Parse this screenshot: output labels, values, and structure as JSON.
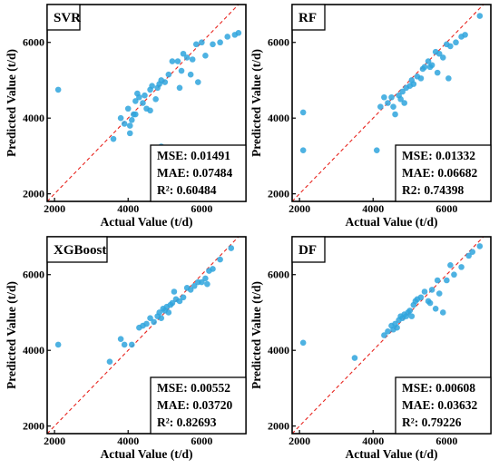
{
  "chart_data": [
    {
      "type": "scatter",
      "title": "SVR",
      "xlabel": "Actual Value (t/d)",
      "ylabel": "Predicted Value (t/d)",
      "xlim": [
        1800,
        7200
      ],
      "ylim": [
        1800,
        7000
      ],
      "xticks": [
        "2000",
        "4000",
        "6000"
      ],
      "yticks": [
        "2000",
        "4000",
        "6000"
      ],
      "metrics": [
        "MSE: 0.01491",
        "MAE: 0.07484",
        "R²: 0.60484"
      ],
      "points": [
        [
          2100,
          4750
        ],
        [
          3600,
          3450
        ],
        [
          3800,
          4000
        ],
        [
          3900,
          3850
        ],
        [
          4000,
          4250
        ],
        [
          4050,
          3800
        ],
        [
          4050,
          3600
        ],
        [
          4100,
          3950
        ],
        [
          4150,
          4100
        ],
        [
          4200,
          4450
        ],
        [
          4200,
          4100
        ],
        [
          4250,
          4650
        ],
        [
          4300,
          4550
        ],
        [
          4400,
          4400
        ],
        [
          4450,
          4600
        ],
        [
          4500,
          4250
        ],
        [
          4600,
          4200
        ],
        [
          4600,
          4750
        ],
        [
          4650,
          4850
        ],
        [
          4750,
          4500
        ],
        [
          4800,
          4800
        ],
        [
          4850,
          4900
        ],
        [
          4900,
          5000
        ],
        [
          4900,
          3250
        ],
        [
          5000,
          4950
        ],
        [
          5100,
          5150
        ],
        [
          5200,
          5500
        ],
        [
          5350,
          5500
        ],
        [
          5400,
          4800
        ],
        [
          5450,
          5250
        ],
        [
          5500,
          5700
        ],
        [
          5600,
          5600
        ],
        [
          5700,
          5150
        ],
        [
          5750,
          5550
        ],
        [
          5850,
          5950
        ],
        [
          5900,
          4950
        ],
        [
          6000,
          6000
        ],
        [
          6100,
          5650
        ],
        [
          6300,
          5950
        ],
        [
          6500,
          6000
        ],
        [
          6700,
          6150
        ],
        [
          6900,
          6200
        ],
        [
          7000,
          6250
        ]
      ]
    },
    {
      "type": "scatter",
      "title": "RF",
      "xlabel": "Actual Value (t/d)",
      "ylabel": "Predicted Value (t/d)",
      "xlim": [
        1800,
        7200
      ],
      "ylim": [
        1800,
        7000
      ],
      "xticks": [
        "2000",
        "4000",
        "6000"
      ],
      "yticks": [
        "2000",
        "4000",
        "6000"
      ],
      "metrics": [
        "MSE: 0.01332",
        "MAE: 0.06682",
        "R2: 0.74398"
      ],
      "points": [
        [
          2100,
          4150
        ],
        [
          2100,
          3150
        ],
        [
          4100,
          3150
        ],
        [
          4200,
          4300
        ],
        [
          4300,
          4550
        ],
        [
          4400,
          4400
        ],
        [
          4500,
          4550
        ],
        [
          4550,
          4300
        ],
        [
          4600,
          4100
        ],
        [
          4700,
          4600
        ],
        [
          4750,
          4500
        ],
        [
          4800,
          4700
        ],
        [
          4850,
          4400
        ],
        [
          4900,
          4800
        ],
        [
          5000,
          4850
        ],
        [
          5050,
          5000
        ],
        [
          5100,
          4900
        ],
        [
          5200,
          5100
        ],
        [
          5300,
          5050
        ],
        [
          5350,
          5300
        ],
        [
          5400,
          5350
        ],
        [
          5500,
          5500
        ],
        [
          5550,
          5350
        ],
        [
          5600,
          5400
        ],
        [
          5700,
          5750
        ],
        [
          5750,
          5200
        ],
        [
          5800,
          5700
        ],
        [
          5900,
          5600
        ],
        [
          6000,
          5950
        ],
        [
          6050,
          5050
        ],
        [
          6100,
          5900
        ],
        [
          6250,
          6000
        ],
        [
          6400,
          6150
        ],
        [
          6500,
          6200
        ],
        [
          6900,
          6700
        ]
      ]
    },
    {
      "type": "scatter",
      "title": "XGBoost",
      "xlabel": "Actual Value (t/d)",
      "ylabel": "Predicted Value (t/d)",
      "xlim": [
        1800,
        7200
      ],
      "ylim": [
        1800,
        7000
      ],
      "xticks": [
        "2000",
        "4000",
        "6000"
      ],
      "yticks": [
        "2000",
        "4000",
        "6000"
      ],
      "metrics": [
        "MSE: 0.00552",
        "MAE: 0.03720",
        "R²: 0.82693"
      ],
      "points": [
        [
          2100,
          4150
        ],
        [
          3500,
          3700
        ],
        [
          3800,
          4300
        ],
        [
          3900,
          4150
        ],
        [
          4100,
          4150
        ],
        [
          4300,
          4600
        ],
        [
          4400,
          4650
        ],
        [
          4500,
          4700
        ],
        [
          4600,
          4850
        ],
        [
          4700,
          4750
        ],
        [
          4800,
          4900
        ],
        [
          4850,
          5000
        ],
        [
          4900,
          4850
        ],
        [
          4950,
          5100
        ],
        [
          5000,
          5050
        ],
        [
          5050,
          5150
        ],
        [
          5100,
          5000
        ],
        [
          5150,
          5200
        ],
        [
          5200,
          5250
        ],
        [
          5250,
          5550
        ],
        [
          5300,
          5350
        ],
        [
          5400,
          5300
        ],
        [
          5500,
          5400
        ],
        [
          5600,
          5650
        ],
        [
          5700,
          5600
        ],
        [
          5800,
          5700
        ],
        [
          5900,
          5800
        ],
        [
          6000,
          5800
        ],
        [
          6100,
          5900
        ],
        [
          6150,
          5750
        ],
        [
          6200,
          6100
        ],
        [
          6300,
          6150
        ],
        [
          6500,
          6400
        ],
        [
          6800,
          6700
        ]
      ]
    },
    {
      "type": "scatter",
      "title": "DF",
      "xlabel": "Actual Value (t/d)",
      "ylabel": "Predicted Value (t/d)",
      "xlim": [
        1800,
        7200
      ],
      "ylim": [
        1800,
        7000
      ],
      "xticks": [
        "2000",
        "4000",
        "6000"
      ],
      "yticks": [
        "2000",
        "4000",
        "6000"
      ],
      "metrics": [
        "MSE: 0.00608",
        "MAE: 0.03632",
        "R²: 0.79226"
      ],
      "points": [
        [
          2100,
          4200
        ],
        [
          3500,
          3800
        ],
        [
          4300,
          4400
        ],
        [
          4400,
          4500
        ],
        [
          4500,
          4650
        ],
        [
          4550,
          4550
        ],
        [
          4600,
          4700
        ],
        [
          4650,
          4600
        ],
        [
          4700,
          4800
        ],
        [
          4750,
          4900
        ],
        [
          4800,
          4850
        ],
        [
          4850,
          4950
        ],
        [
          4900,
          4900
        ],
        [
          4950,
          5000
        ],
        [
          5000,
          5050
        ],
        [
          5050,
          4900
        ],
        [
          5100,
          5200
        ],
        [
          5150,
          5300
        ],
        [
          5200,
          5350
        ],
        [
          5300,
          5400
        ],
        [
          5400,
          5550
        ],
        [
          5500,
          5300
        ],
        [
          5550,
          5250
        ],
        [
          5600,
          5600
        ],
        [
          5700,
          5100
        ],
        [
          5750,
          5850
        ],
        [
          5800,
          5500
        ],
        [
          5900,
          5000
        ],
        [
          6000,
          5850
        ],
        [
          6100,
          6250
        ],
        [
          6200,
          6000
        ],
        [
          6400,
          6200
        ],
        [
          6600,
          6500
        ],
        [
          6700,
          6600
        ],
        [
          6900,
          6750
        ]
      ]
    }
  ]
}
